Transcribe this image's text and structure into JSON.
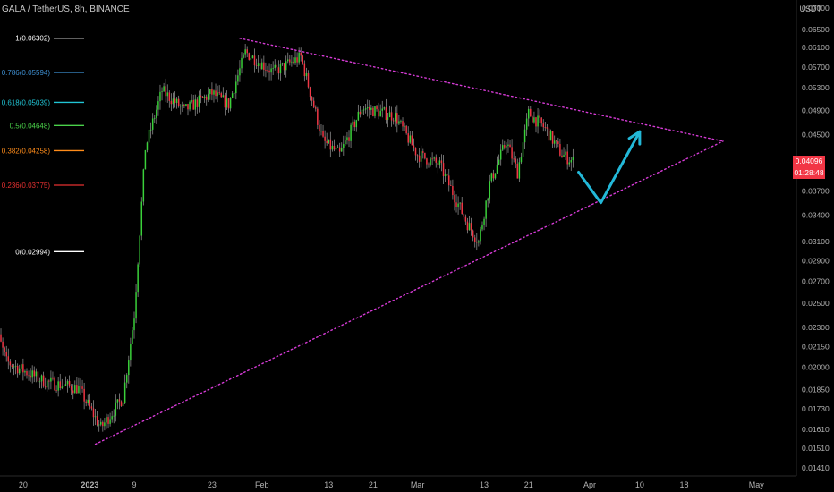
{
  "header": {
    "title": "GALA / TetherUS, 8h, BINANCE",
    "unit": "USDT"
  },
  "price_badge": {
    "price": "0.04096",
    "countdown": "01:28:48",
    "color": "#f23645"
  },
  "colors": {
    "up": "#3ad13a",
    "down": "#f23645",
    "wick": "#8a8a8a",
    "trendline": "#d63bd6",
    "arrow": "#23b8d8",
    "axis_text": "#b2b2b2"
  },
  "chart_data": {
    "type": "candlestick",
    "title": "GALA / TetherUS, 8h, BINANCE",
    "ylabel": "USDT",
    "log_scale": true,
    "ylim": [
      0.0137,
      0.072
    ],
    "y_ticks": [
      "0.07000",
      "0.06500",
      "0.06100",
      "0.05700",
      "0.05300",
      "0.04900",
      "0.04500",
      "0.04096",
      "0.03700",
      "0.03400",
      "0.03100",
      "0.02900",
      "0.02700",
      "0.02500",
      "0.02300",
      "0.02150",
      "0.02000",
      "0.01850",
      "0.01730",
      "0.01610",
      "0.01510",
      "0.01410"
    ],
    "x_ticks": [
      "20",
      "2023",
      "9",
      "23",
      "Feb",
      "13",
      "21",
      "Mar",
      "13",
      "21",
      "Apr",
      "10",
      "18",
      "May"
    ],
    "x_tick_dates": [
      "2022-12-20",
      "2023-01-01",
      "2023-01-09",
      "2023-01-23",
      "2023-02-01",
      "2023-02-13",
      "2023-02-21",
      "2023-03-01",
      "2023-03-13",
      "2023-03-21",
      "2023-04-01",
      "2023-04-10",
      "2023-04-18",
      "2023-05-01"
    ],
    "last_price": 0.04096,
    "fib_levels": [
      {
        "ratio": "1",
        "value": 0.06302,
        "label": "1(0.06302)",
        "color": "#ffffff"
      },
      {
        "ratio": "0.786",
        "value": 0.05594,
        "label": "0.786(0.05594)",
        "color": "#3e8fd1"
      },
      {
        "ratio": "0.618",
        "value": 0.05039,
        "label": "0.618(0.05039)",
        "color": "#21c4d4"
      },
      {
        "ratio": "0.5",
        "value": 0.04648,
        "label": "0.5(0.04648)",
        "color": "#4ad14a"
      },
      {
        "ratio": "0.382",
        "value": 0.04258,
        "label": "0.382(0.04258)",
        "color": "#ff8c1a"
      },
      {
        "ratio": "0.236",
        "value": 0.03775,
        "label": "0.236(0.03775)",
        "color": "#e53030"
      },
      {
        "ratio": "0",
        "value": 0.02994,
        "label": "0(0.02994)",
        "color": "#ffffff"
      }
    ],
    "path_anchors": [
      {
        "date": "2022-12-14",
        "price": 0.0245
      },
      {
        "date": "2022-12-17",
        "price": 0.0204
      },
      {
        "date": "2022-12-24",
        "price": 0.019
      },
      {
        "date": "2022-12-30",
        "price": 0.0186
      },
      {
        "date": "2023-01-03",
        "price": 0.0162
      },
      {
        "date": "2023-01-07",
        "price": 0.018
      },
      {
        "date": "2023-01-09",
        "price": 0.024
      },
      {
        "date": "2023-01-11",
        "price": 0.043
      },
      {
        "date": "2023-01-14",
        "price": 0.0525
      },
      {
        "date": "2023-01-18",
        "price": 0.049
      },
      {
        "date": "2023-01-23",
        "price": 0.052
      },
      {
        "date": "2023-01-26",
        "price": 0.05
      },
      {
        "date": "2023-01-29",
        "price": 0.06
      },
      {
        "date": "2023-02-03",
        "price": 0.056
      },
      {
        "date": "2023-02-08",
        "price": 0.059
      },
      {
        "date": "2023-02-12",
        "price": 0.044
      },
      {
        "date": "2023-02-15",
        "price": 0.042
      },
      {
        "date": "2023-02-19",
        "price": 0.0495
      },
      {
        "date": "2023-02-25",
        "price": 0.048
      },
      {
        "date": "2023-03-01",
        "price": 0.042
      },
      {
        "date": "2023-03-05",
        "price": 0.0405
      },
      {
        "date": "2023-03-10",
        "price": 0.033
      },
      {
        "date": "2023-03-12",
        "price": 0.031
      },
      {
        "date": "2023-03-14",
        "price": 0.038
      },
      {
        "date": "2023-03-17",
        "price": 0.044
      },
      {
        "date": "2023-03-19",
        "price": 0.0395
      },
      {
        "date": "2023-03-21",
        "price": 0.0485
      },
      {
        "date": "2023-03-24",
        "price": 0.046
      },
      {
        "date": "2023-03-27",
        "price": 0.042
      },
      {
        "date": "2023-03-29",
        "price": 0.041
      }
    ],
    "trendlines": [
      {
        "name": "upper",
        "from": {
          "date": "2023-01-28",
          "price": 0.063
        },
        "to": {
          "date": "2023-04-25",
          "price": 0.044
        }
      },
      {
        "name": "lower",
        "from": {
          "date": "2023-01-02",
          "price": 0.0153
        },
        "to": {
          "date": "2023-04-25",
          "price": 0.044
        }
      }
    ],
    "projection_arrow": [
      {
        "date": "2023-03-30",
        "price": 0.0395
      },
      {
        "date": "2023-04-03",
        "price": 0.0355
      },
      {
        "date": "2023-04-10",
        "price": 0.0455
      }
    ]
  }
}
